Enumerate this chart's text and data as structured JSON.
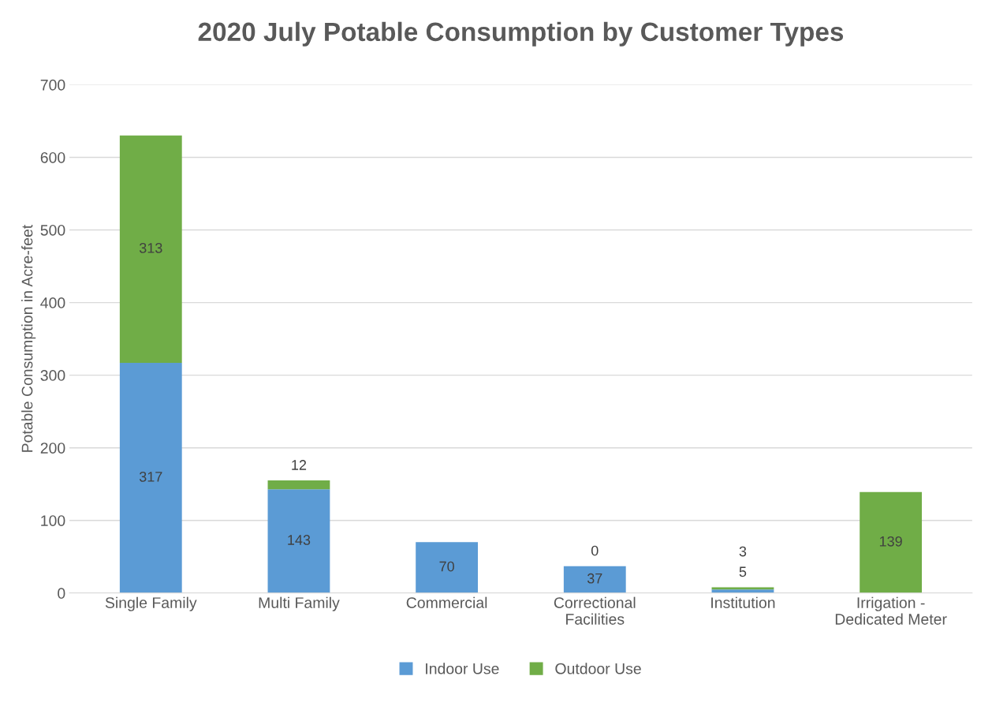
{
  "chart_data": {
    "type": "bar",
    "title": "2020 July Potable Consumption by Customer Types",
    "ylabel": "Potable Consumption in Acre-feet",
    "categories": [
      "Single Family",
      "Multi Family",
      "Commercial",
      "Correctional\nFacilities",
      "Institution",
      "Irrigation -\nDedicated Meter"
    ],
    "stacked": true,
    "ylim": [
      0,
      700
    ],
    "yticks": [
      0,
      100,
      200,
      300,
      400,
      500,
      600,
      700
    ],
    "grid": "y",
    "legend": "bottom",
    "series": [
      {
        "name": "Indoor Use",
        "color": "#5b9bd5",
        "values": [
          317,
          143,
          70,
          37,
          5,
          null
        ],
        "value_labels": [
          "317",
          "143",
          "70",
          "37",
          "5",
          null
        ]
      },
      {
        "name": "Outdoor Use",
        "color": "#70ad47",
        "values": [
          313,
          12,
          null,
          0,
          3,
          139
        ],
        "value_labels": [
          "313",
          "12",
          null,
          "0",
          "3",
          "139"
        ]
      }
    ]
  }
}
